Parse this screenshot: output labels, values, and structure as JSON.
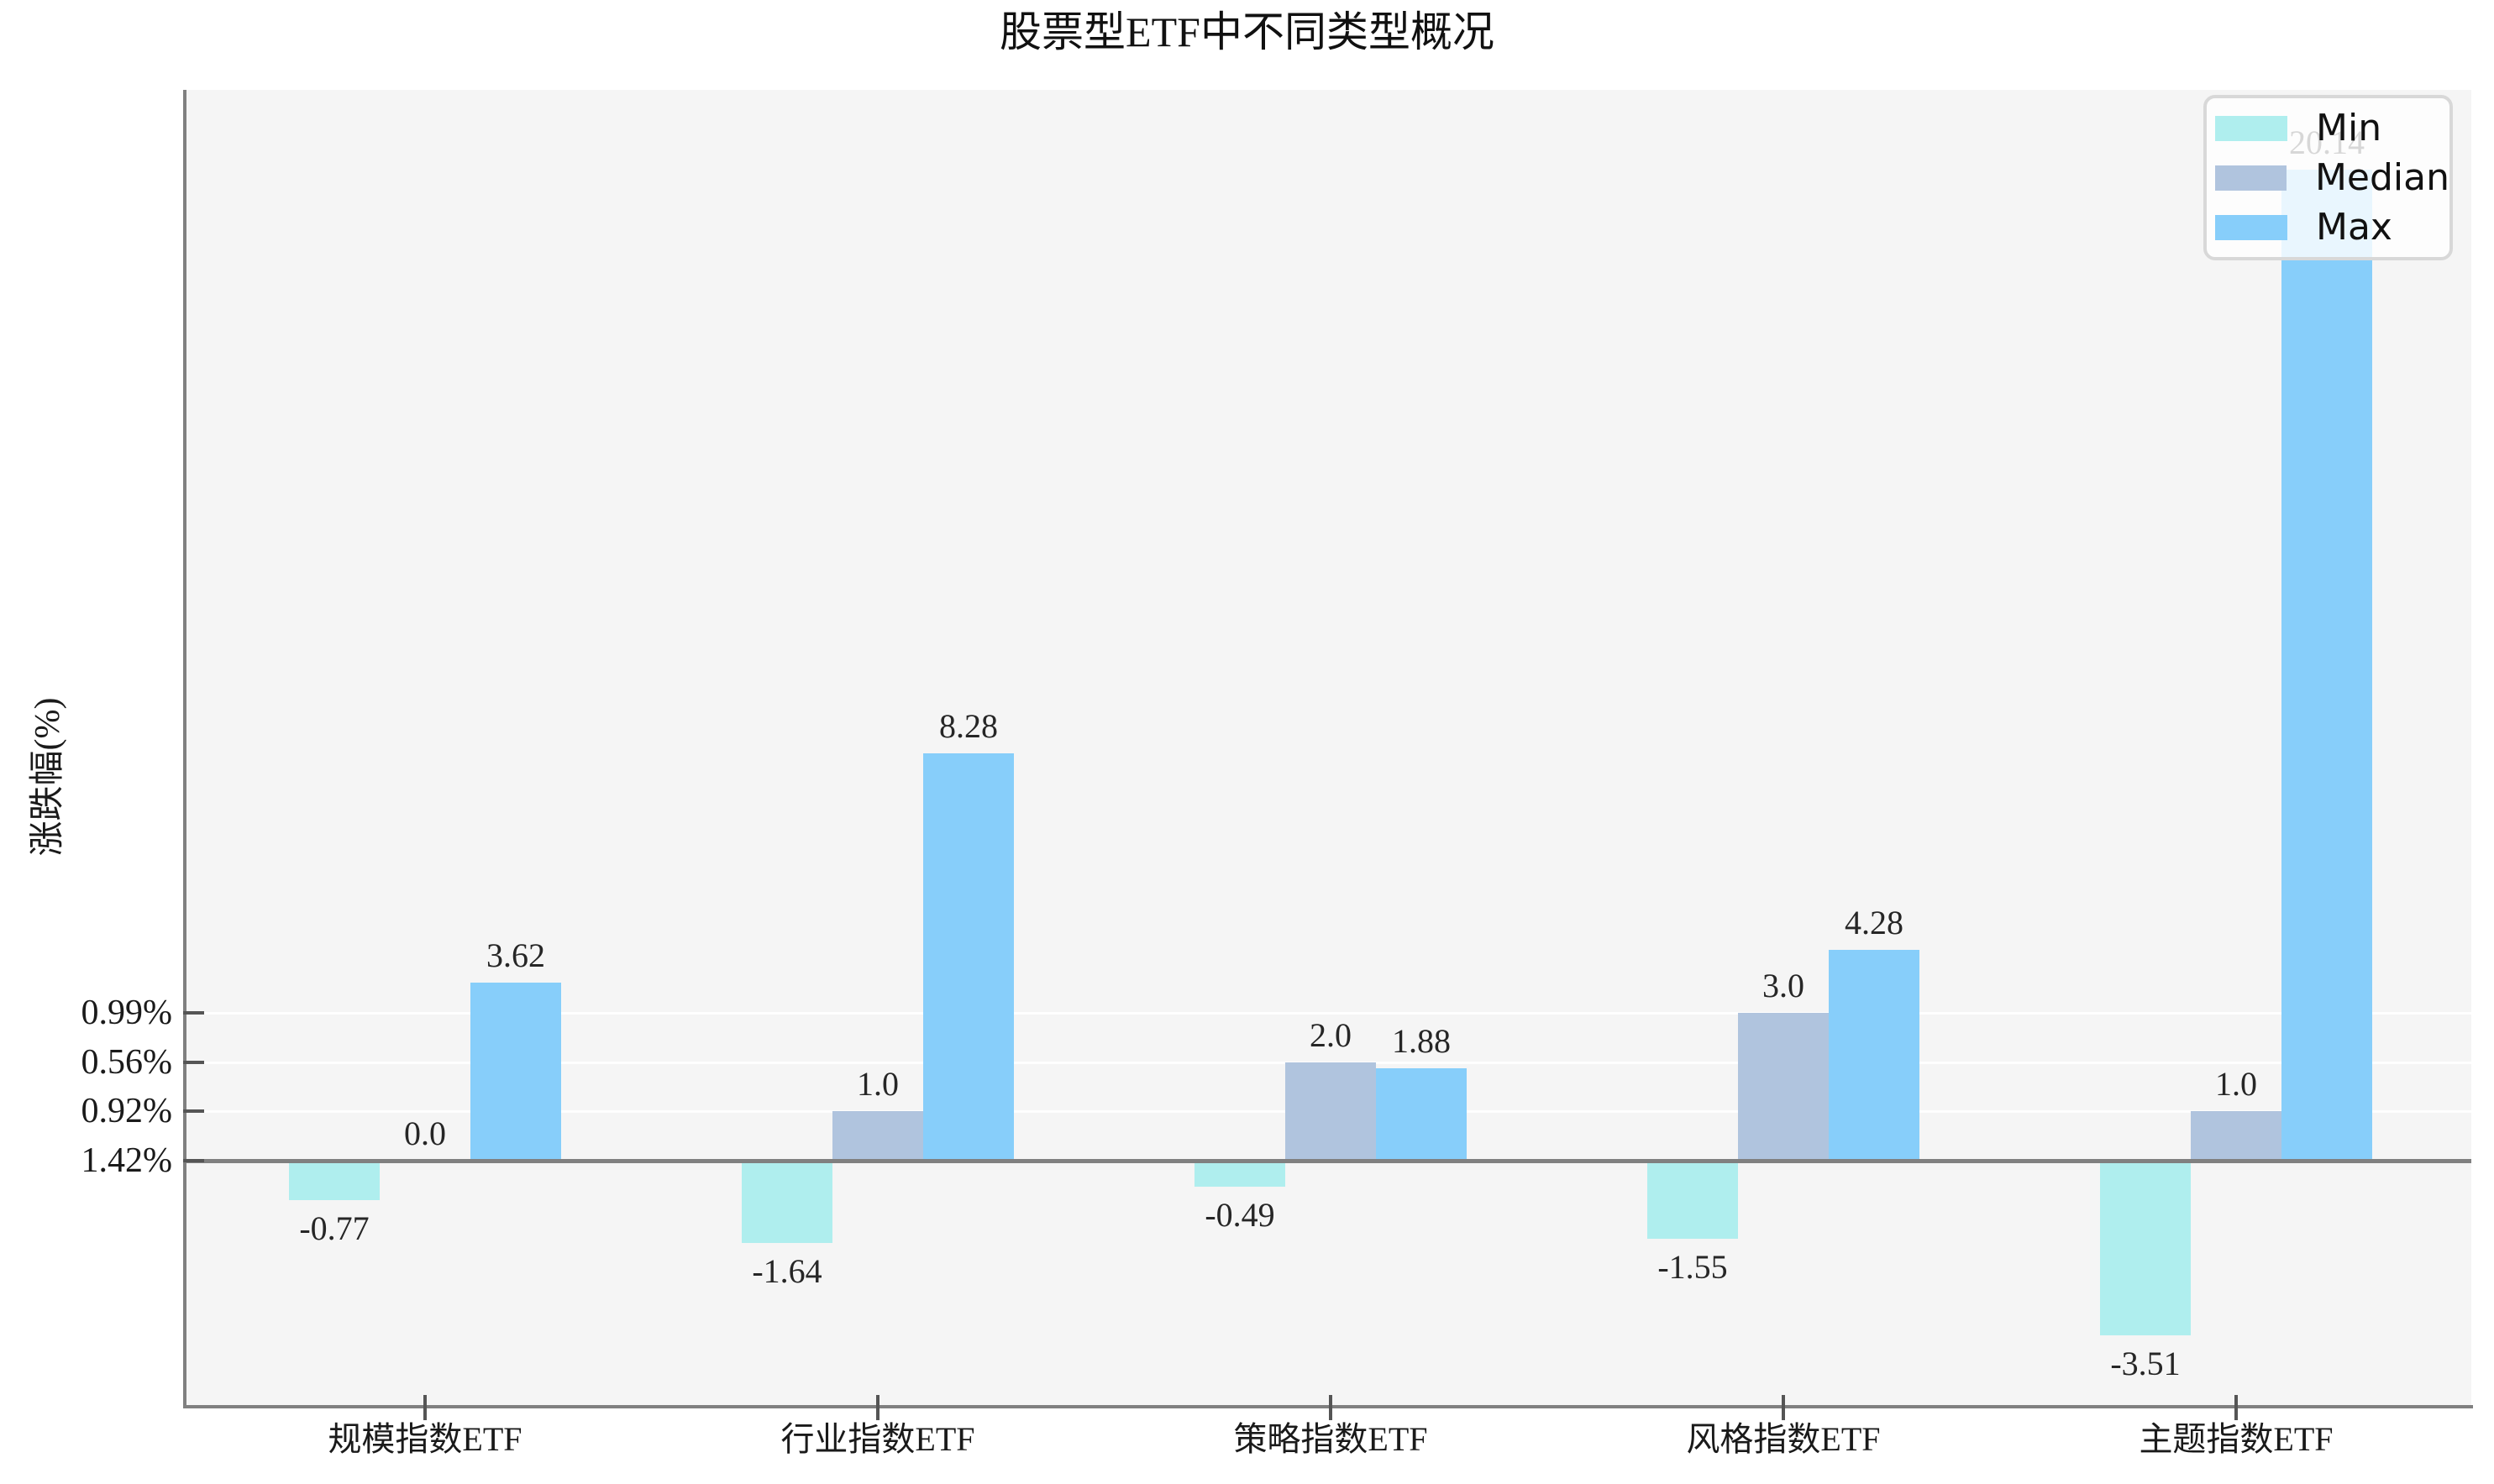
{
  "title": "股票型ETF中不同类型概况",
  "y_axis_label": "涨跌幅(%)",
  "legend": {
    "position": "upper right",
    "items": [
      {
        "label": "Min",
        "color": "#AFEEEE"
      },
      {
        "label": "Median",
        "color": "#B0C4DE"
      },
      {
        "label": "Max",
        "color": "#87CEFA"
      }
    ]
  },
  "colors": {
    "plot_background": "#f5f5f5",
    "spine": "#808080",
    "zero_line": "#808080",
    "gridline": "#ffffff",
    "min_bar": "#AFEEEE",
    "median_bar": "#B0C4DE",
    "max_bar": "#87CEFA"
  },
  "chart_data": {
    "type": "bar",
    "title": "股票型ETF中不同类型概况",
    "xlabel": "",
    "ylabel": "涨跌幅(%)",
    "categories": [
      "规模指数ETF",
      "行业指数ETF",
      "策略指数ETF",
      "风格指数ETF",
      "主题指数ETF"
    ],
    "series": [
      {
        "name": "Min",
        "color": "#AFEEEE",
        "values": [
          -0.77,
          -1.64,
          -0.49,
          -1.55,
          -3.51
        ],
        "labels": [
          "-0.77",
          "-1.64",
          "-0.49",
          "-1.55",
          "-3.51"
        ]
      },
      {
        "name": "Median",
        "color": "#B0C4DE",
        "values": [
          0.0,
          1.0,
          2.0,
          3.0,
          1.0
        ],
        "labels": [
          "0.0",
          "1.0",
          "2.0",
          "3.0",
          "1.0"
        ]
      },
      {
        "name": "Max",
        "color": "#87CEFA",
        "values": [
          3.62,
          8.28,
          1.88,
          4.28,
          20.14
        ],
        "labels": [
          "3.62",
          "8.28",
          "1.88",
          "4.28",
          "20.14"
        ]
      }
    ],
    "yticks": [
      {
        "label": "0.99%",
        "value": 3
      },
      {
        "label": "0.56%",
        "value": 2
      },
      {
        "label": "0.92%",
        "value": 1
      },
      {
        "label": "1.42%",
        "value": 0
      }
    ],
    "ylim": [
      -4.97,
      21.76
    ],
    "grid": true,
    "legend_position": "upper right",
    "legend_entries": [
      "Min",
      "Median",
      "Max"
    ]
  }
}
